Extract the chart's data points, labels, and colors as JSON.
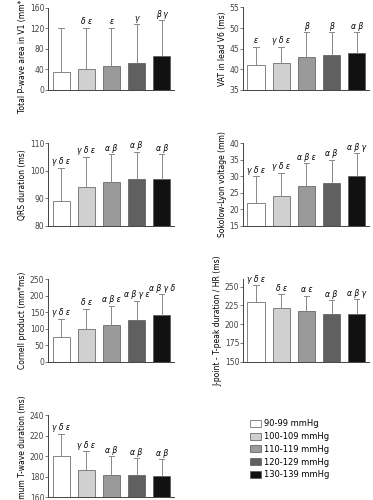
{
  "panels": [
    {
      "ylabel": "Total P-wave area in V1 (mm*ms)",
      "ylim": [
        0,
        160
      ],
      "yticks": [
        0,
        40,
        80,
        120,
        160
      ],
      "values": [
        35,
        41,
        46,
        52,
        65
      ],
      "errors": [
        85,
        80,
        75,
        75,
        70
      ],
      "annotations": [
        "",
        "δ ε",
        "ε",
        "γ",
        "β γ"
      ]
    },
    {
      "ylabel": "VAT in lead V6 (ms)",
      "ylim": [
        35,
        55
      ],
      "yticks": [
        35,
        40,
        45,
        50,
        55
      ],
      "values": [
        41,
        41.5,
        43,
        43.5,
        44
      ],
      "errors": [
        4.5,
        4.0,
        6.0,
        5.5,
        5.0
      ],
      "annotations": [
        "ε",
        "γ δ ε",
        "β",
        "β",
        "α β"
      ]
    },
    {
      "ylabel": "QRS duration (ms)",
      "ylim": [
        80,
        110
      ],
      "yticks": [
        80,
        90,
        100,
        110
      ],
      "values": [
        89,
        94,
        96,
        97,
        97
      ],
      "errors": [
        12,
        11,
        10,
        10,
        9
      ],
      "annotations": [
        "γ δ ε",
        "γ δ ε",
        "α β",
        "α β",
        "α β"
      ]
    },
    {
      "ylabel": "Sokolow-Lyon voltage (mm)",
      "ylim": [
        15,
        40
      ],
      "yticks": [
        15,
        20,
        25,
        30,
        35,
        40
      ],
      "values": [
        22,
        24,
        27,
        28,
        30
      ],
      "errors": [
        8,
        7,
        7,
        7,
        7
      ],
      "annotations": [
        "γ δ ε",
        "γ δ ε",
        "α β ε",
        "α β",
        "α β γ"
      ]
    },
    {
      "ylabel": "Cornell product (mm*ms)",
      "ylim": [
        0,
        250
      ],
      "yticks": [
        0,
        50,
        100,
        150,
        200,
        250
      ],
      "values": [
        75,
        100,
        110,
        127,
        142
      ],
      "errors": [
        55,
        60,
        60,
        58,
        62
      ],
      "annotations": [
        "γ δ ε",
        "δ ε",
        "α β ε",
        "α β γ ε",
        "α β γ δ"
      ]
    },
    {
      "ylabel": "J-point - T-peak duration / HR (ms)",
      "ylim": [
        150,
        260
      ],
      "yticks": [
        150,
        175,
        200,
        225,
        250
      ],
      "values": [
        230,
        222,
        218,
        214,
        213
      ],
      "errors": [
        22,
        18,
        20,
        18,
        20
      ],
      "annotations": [
        "γ δ ε",
        "δ ε",
        "α ε",
        "α β",
        "α β γ"
      ]
    },
    {
      "ylabel": "Maximum T-wave duration (ms)",
      "ylim": [
        160,
        240
      ],
      "yticks": [
        160,
        180,
        200,
        220,
        240
      ],
      "values": [
        200,
        187,
        182,
        182,
        181
      ],
      "errors": [
        22,
        18,
        18,
        16,
        16
      ],
      "annotations": [
        "γ δ ε",
        "γ δ ε",
        "α β",
        "α β",
        "α β"
      ]
    }
  ],
  "bar_colors": [
    "#ffffff",
    "#d0d0d0",
    "#9a9a9a",
    "#606060",
    "#111111"
  ],
  "bar_edgecolor": "#555555",
  "error_color": "#888888",
  "legend_labels": [
    "90-99 mmHg",
    "100-109 mmHg",
    "110-119 mmHg",
    "120-129 mmHg",
    "130-139 mmHg"
  ],
  "annot_fontsize": 5.5,
  "ylabel_fontsize": 5.5,
  "tick_fontsize": 5.5,
  "legend_fontsize": 6.0
}
